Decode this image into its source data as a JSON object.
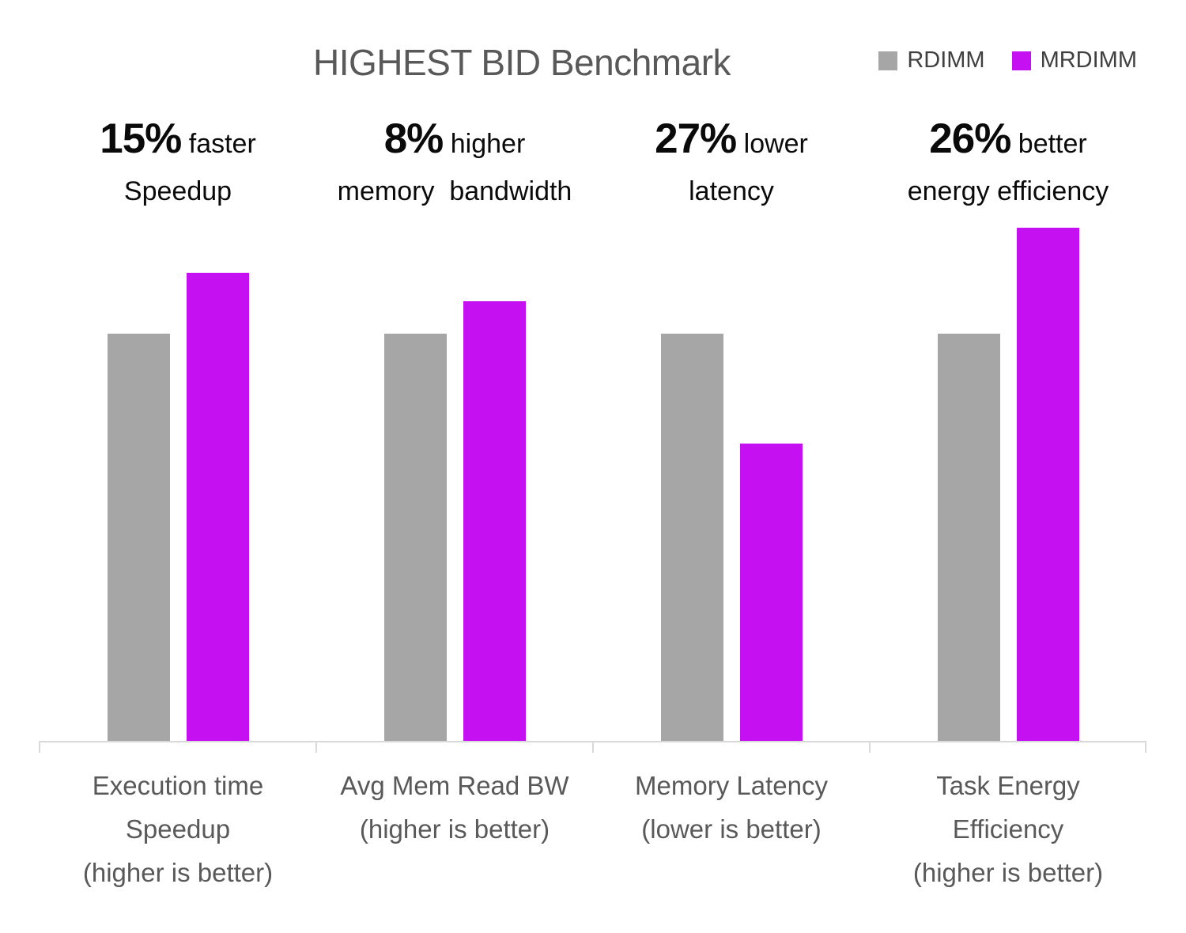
{
  "title": "HIGHEST BID Benchmark",
  "legend": {
    "items": [
      {
        "label": "RDIMM",
        "color": "#a6a6a6"
      },
      {
        "label": "MRDIMM",
        "color": "#c511f2"
      }
    ]
  },
  "chart_data": {
    "type": "bar",
    "title": "HIGHEST BID Benchmark",
    "categories": [
      [
        "Execution time",
        "Speedup",
        "(higher is better)"
      ],
      [
        "Avg Mem Read BW",
        "(higher is better)"
      ],
      [
        "Memory Latency",
        "(lower is better)"
      ],
      [
        "Task Energy",
        "Efficiency",
        "(higher is better)"
      ]
    ],
    "series": [
      {
        "name": "RDIMM",
        "color": "#a6a6a6",
        "values": [
          1.0,
          1.0,
          1.0,
          1.0
        ]
      },
      {
        "name": "MRDIMM",
        "color": "#c511f2",
        "values": [
          1.15,
          1.08,
          0.73,
          1.26
        ]
      }
    ],
    "annotations": [
      {
        "pct": "15%",
        "suffix": "faster",
        "line2": "Speedup"
      },
      {
        "pct": "8%",
        "suffix": "higher",
        "line2": "memory  bandwidth"
      },
      {
        "pct": "27%",
        "suffix": "lower",
        "line2": "latency"
      },
      {
        "pct": "26%",
        "suffix": "better",
        "line2": "energy efficiency"
      }
    ],
    "ylim": [
      0,
      1.3
    ],
    "grid": false,
    "legend_position": "top-right",
    "axis_color": "#d9d9d9",
    "xlabel": "",
    "ylabel": ""
  },
  "layout_ticks_note": "axis ticks at group boundaries"
}
